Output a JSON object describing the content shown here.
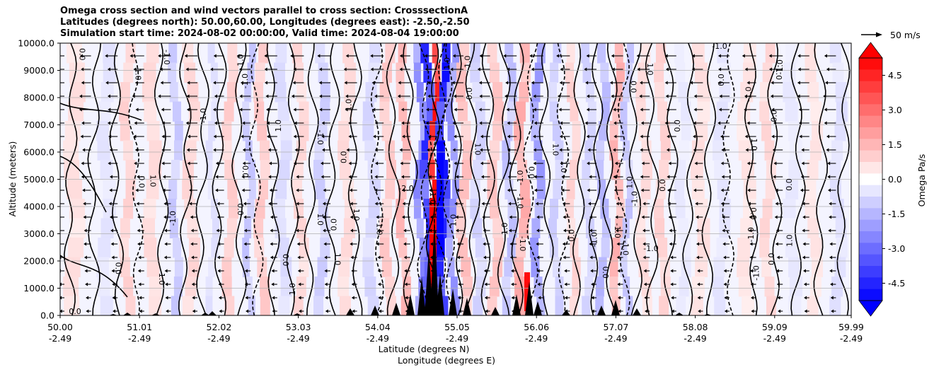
{
  "titles": [
    "Omega cross section and wind vectors parallel to cross section: CrosssectionA",
    "Latitudes (degrees north): 50.00,60.00, Longitudes (degrees east): -2.50,-2.50",
    "Simulation start time: 2024-08-02 00:00:00, Valid time: 2024-08-04 19:00:00"
  ],
  "quiver_key": "50 m/s",
  "chart_data": {
    "type": "contour",
    "title": "Omega cross section and wind vectors parallel to cross section: CrosssectionA",
    "ylabel": "Altitude (meters)",
    "xlabel_lines": [
      "Latitude (degrees N)",
      "Longitude (degrees E)"
    ],
    "ylim": [
      0,
      10000
    ],
    "yticks": [
      "0.0",
      "1000.0",
      "2000.0",
      "3000.0",
      "4000.0",
      "5000.0",
      "6000.0",
      "7000.0",
      "8000.0",
      "9000.0",
      "10000.0"
    ],
    "xticks": [
      {
        "lat": "50.00",
        "lon": "-2.49"
      },
      {
        "lat": "51.01",
        "lon": "-2.49"
      },
      {
        "lat": "52.02",
        "lon": "-2.49"
      },
      {
        "lat": "53.03",
        "lon": "-2.49"
      },
      {
        "lat": "54.04",
        "lon": "-2.49"
      },
      {
        "lat": "55.05",
        "lon": "-2.49"
      },
      {
        "lat": "56.06",
        "lon": "-2.49"
      },
      {
        "lat": "57.07",
        "lon": "-2.49"
      },
      {
        "lat": "58.08",
        "lon": "-2.49"
      },
      {
        "lat": "59.09",
        "lon": "-2.49"
      },
      {
        "lat": "59.99",
        "lon": "-2.49"
      }
    ],
    "colorbar": {
      "label": "Omega Pa/s",
      "range": [
        -5.25,
        5.25
      ],
      "extend": "both",
      "ticks": [
        "-4.5",
        "-3.0",
        "-1.5",
        "0.0",
        "1.5",
        "3.0",
        "4.5"
      ],
      "tick_values": [
        -4.5,
        -3.0,
        -1.5,
        0.0,
        1.5,
        3.0,
        4.5
      ]
    },
    "contour_labels": [
      "0.0",
      "1.0",
      "-1.0",
      "-2.0"
    ],
    "wind_vector_direction": "westward (toward lower latitude)",
    "grid": true
  },
  "colors": {
    "positive_max": "#ff0000",
    "negative_max": "#0000ff",
    "neutral": "#ffffff",
    "terrain": "#000000"
  }
}
